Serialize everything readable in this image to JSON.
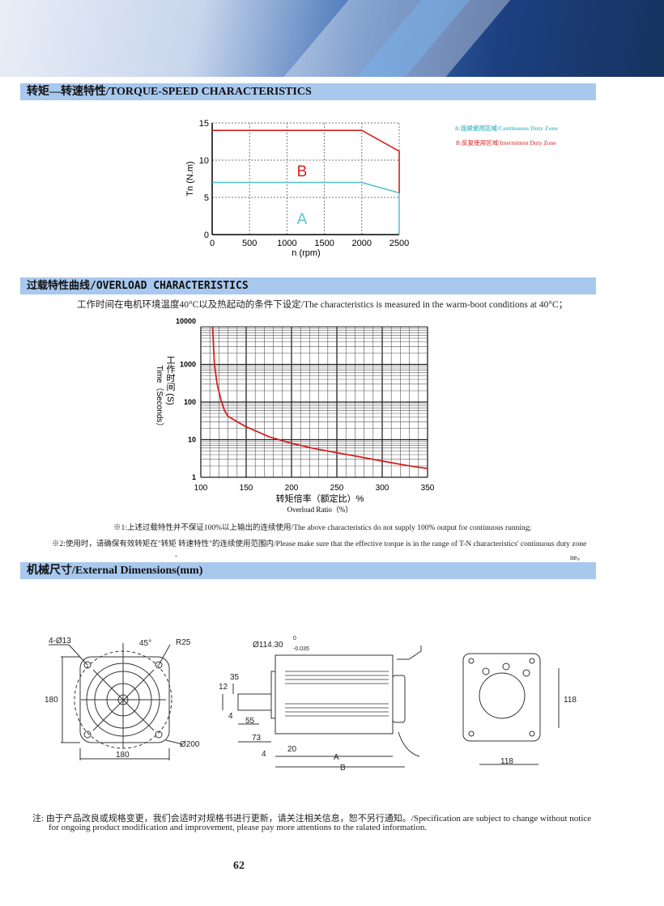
{
  "sections": {
    "torque": "转矩—转速特性/TORQUE-SPEED CHARACTERISTICS",
    "overload": "过载特性曲线/OVERLOAD CHARACTERISTICS",
    "dims": "机械尺寸/External Dimensions(mm)"
  },
  "overload_intro": "工作时间在电机环境温度40°C以及热起动的条件下设定/The characteristics is measured in the warm-boot conditions at 40°C；",
  "notes": [
    "※1:上述过载特性并不保证100%以上输出的连续使用/The above characteristics do not supply 100% output for continuous running;",
    "※2:使用时，请确保有效转矩在\"转矩 转速特性\"的连续使用范围内/Please make sure that the effective torque is in the range of T-N characteristics' continuous duty zone",
    "-",
    "ne。"
  ],
  "footer_note": {
    "line1": "注: 由于产品改良或规格变更，我们会适时对规格书进行更新，请关注相关信息，恕不另行通知。/Specification are subject to change without notice",
    "line2": "for ongoing product modification and improvement, please pay more attentions to the ralated information."
  },
  "page_number": "62",
  "colors": {
    "continuous": "#5bc3cf",
    "intermittent": "#d42020",
    "header_bar": "#a8c8ee"
  },
  "dimensions": {
    "front": {
      "holes": "4-Ø13",
      "angle": "45°",
      "radius": "R25",
      "height": "180",
      "width": "180",
      "circle": "Ø200"
    },
    "side": {
      "pilot": "Ø114.30",
      "tol_upper": "0",
      "tol_lower": "-0.035",
      "d35": "35",
      "d12": "12",
      "d4a": "4",
      "d55": "55",
      "d73": "73",
      "d4b": "4",
      "d20": "20",
      "A": "A",
      "B": "B"
    },
    "rear": {
      "h": "118",
      "w": "118"
    }
  },
  "chart_data": [
    {
      "type": "line",
      "xlabel": "n (rpm)",
      "ylabel": "Tn (N.m)",
      "xlim": [
        0,
        2500
      ],
      "ylim": [
        0,
        15
      ],
      "xticks": [
        0,
        500,
        1000,
        1500,
        2000,
        2500
      ],
      "yticks": [
        0,
        5,
        10,
        15
      ],
      "grid": true,
      "legend": [
        "A:连续使用区域/Continuous Duty Zone",
        "B:反复使用区域/Intermittent Duty Zone"
      ],
      "legend_position": "right",
      "zone_labels": [
        "A",
        "B"
      ],
      "series": [
        {
          "name": "A",
          "x": [
            0,
            2000,
            2500,
            2500
          ],
          "y": [
            7,
            7,
            5.6,
            0
          ]
        },
        {
          "name": "B",
          "x": [
            0,
            2000,
            2500,
            2500
          ],
          "y": [
            14,
            14,
            11.2,
            5.6
          ]
        }
      ]
    },
    {
      "type": "line",
      "xlabel": "转矩倍率（额定比）%",
      "xlabel2": "Overload Ratio（%）",
      "ylabel": "工作时间 (S)",
      "ylabel2": "Time（Seconds）",
      "xlim": [
        100,
        350
      ],
      "ylim": [
        1,
        10000
      ],
      "yscale": "log",
      "xticks": [
        100,
        150,
        200,
        250,
        300,
        350
      ],
      "yticks": [
        1,
        10,
        100,
        1000,
        10000
      ],
      "grid": true,
      "series": [
        {
          "x": [
            113,
            115,
            118,
            122,
            126,
            130,
            140,
            150,
            175,
            200,
            225,
            250,
            275,
            300,
            325,
            350
          ],
          "y": [
            10000,
            1000,
            300,
            120,
            60,
            42,
            30,
            22,
            12,
            8,
            5.8,
            4.5,
            3.5,
            2.7,
            2.1,
            1.7
          ]
        }
      ]
    }
  ]
}
